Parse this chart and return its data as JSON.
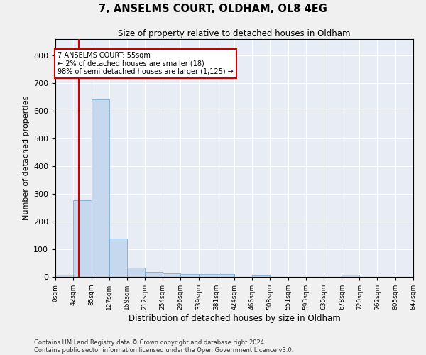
{
  "title": "7, ANSELMS COURT, OLDHAM, OL8 4EG",
  "subtitle": "Size of property relative to detached houses in Oldham",
  "xlabel": "Distribution of detached houses by size in Oldham",
  "ylabel": "Number of detached properties",
  "bar_color": "#c5d8ee",
  "bar_edge_color": "#7aadd4",
  "background_color": "#e8ecf5",
  "grid_color": "#ffffff",
  "annotation_text": "7 ANSELMS COURT: 55sqm\n← 2% of detached houses are smaller (18)\n98% of semi-detached houses are larger (1,125) →",
  "marker_value": 55,
  "marker_color": "#cc0000",
  "bin_edges": [
    0,
    42,
    85,
    127,
    169,
    212,
    254,
    296,
    339,
    381,
    424,
    466,
    508,
    551,
    593,
    635,
    678,
    720,
    762,
    805,
    847
  ],
  "bar_heights": [
    8,
    278,
    641,
    138,
    34,
    19,
    12,
    10,
    10,
    10,
    0,
    6,
    0,
    0,
    0,
    0,
    7,
    0,
    0,
    0
  ],
  "ylim": [
    0,
    860
  ],
  "yticks": [
    0,
    100,
    200,
    300,
    400,
    500,
    600,
    700,
    800
  ],
  "footer_text": "Contains HM Land Registry data © Crown copyright and database right 2024.\nContains public sector information licensed under the Open Government Licence v3.0.",
  "annotation_box_color": "#ffffff",
  "annotation_box_edge": "#cc0000",
  "fig_width": 6.0,
  "fig_height": 5.0,
  "dpi": 100
}
